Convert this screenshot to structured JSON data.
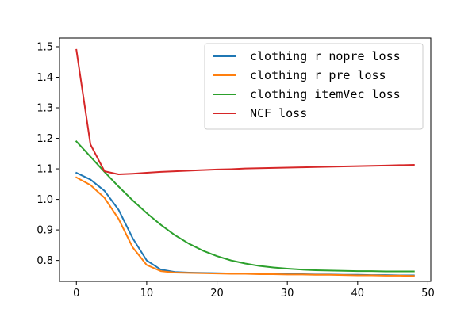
{
  "chart_data": {
    "type": "line",
    "title": "",
    "xlabel": "",
    "ylabel": "",
    "xlim": [
      -2.4,
      50.4
    ],
    "ylim": [
      0.7315,
      1.5285
    ],
    "x_ticks": [
      0,
      10,
      20,
      30,
      40,
      50
    ],
    "y_ticks": [
      0.8,
      0.9,
      1.0,
      1.1,
      1.2,
      1.3,
      1.4,
      1.5
    ],
    "x_tick_labels": [
      "0",
      "10",
      "20",
      "30",
      "40",
      "50"
    ],
    "y_tick_labels": [
      "0.8",
      "0.9",
      "1.0",
      "1.1",
      "1.2",
      "1.3",
      "1.4",
      "1.5"
    ],
    "grid": false,
    "legend_position": "upper right",
    "x": [
      0,
      2,
      4,
      6,
      8,
      10,
      12,
      14,
      16,
      18,
      20,
      22,
      24,
      26,
      28,
      30,
      32,
      34,
      36,
      38,
      40,
      42,
      44,
      46,
      48
    ],
    "series": [
      {
        "name": "clothing_r_nopre loss",
        "color": "#1f77b4",
        "values": [
          1.087,
          1.065,
          1.028,
          0.966,
          0.873,
          0.8,
          0.77,
          0.762,
          0.76,
          0.759,
          0.758,
          0.757,
          0.757,
          0.756,
          0.756,
          0.755,
          0.755,
          0.754,
          0.754,
          0.753,
          0.753,
          0.752,
          0.752,
          0.751,
          0.751
        ]
      },
      {
        "name": "clothing_r_pre loss",
        "color": "#ff7f0e",
        "values": [
          1.072,
          1.047,
          1.005,
          0.936,
          0.843,
          0.785,
          0.765,
          0.76,
          0.759,
          0.758,
          0.757,
          0.756,
          0.756,
          0.755,
          0.755,
          0.754,
          0.754,
          0.753,
          0.753,
          0.752,
          0.751,
          0.751,
          0.75,
          0.75,
          0.749
        ]
      },
      {
        "name": "clothing_itemVec loss",
        "color": "#2ca02c",
        "values": [
          1.19,
          1.14,
          1.09,
          1.042,
          0.997,
          0.955,
          0.917,
          0.883,
          0.855,
          0.832,
          0.814,
          0.8,
          0.79,
          0.782,
          0.777,
          0.773,
          0.77,
          0.768,
          0.767,
          0.766,
          0.765,
          0.765,
          0.764,
          0.764,
          0.764
        ]
      },
      {
        "name": "NCF loss",
        "color": "#d62728",
        "values": [
          1.49,
          1.18,
          1.092,
          1.082,
          1.084,
          1.087,
          1.09,
          1.092,
          1.094,
          1.096,
          1.098,
          1.099,
          1.101,
          1.102,
          1.103,
          1.104,
          1.105,
          1.106,
          1.107,
          1.108,
          1.109,
          1.11,
          1.111,
          1.112,
          1.113
        ]
      }
    ]
  }
}
